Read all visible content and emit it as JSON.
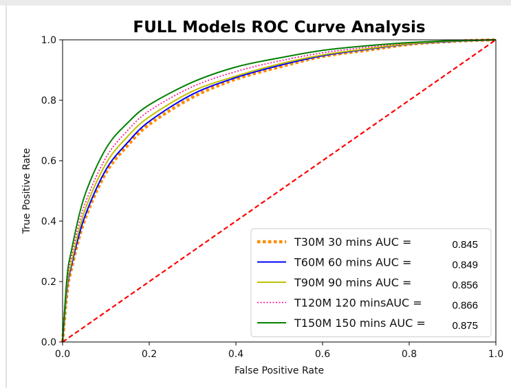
{
  "chart_data": {
    "type": "line",
    "title": "FULL Models ROC Curve Analysis",
    "xlabel": "False Positive Rate",
    "ylabel": "True Positive Rate",
    "xlim": [
      0.0,
      1.0
    ],
    "ylim": [
      0.0,
      1.0
    ],
    "x_ticks": [
      "0.0",
      "0.2",
      "0.4",
      "0.6",
      "0.8",
      "1.0"
    ],
    "y_ticks": [
      "0.0",
      "0.2",
      "0.4",
      "0.6",
      "0.8",
      "1.0"
    ],
    "grid": false,
    "legend_position": "lower-right",
    "series": [
      {
        "name": "T30M 30 mins AUC =",
        "auc": "0.845",
        "color": "#ff8c00",
        "style": "dotted-thick",
        "x": [
          0.0,
          0.01,
          0.02,
          0.05,
          0.1,
          0.15,
          0.2,
          0.3,
          0.4,
          0.5,
          0.6,
          0.7,
          0.8,
          0.9,
          1.0
        ],
        "y": [
          0.0,
          0.16,
          0.24,
          0.4,
          0.56,
          0.65,
          0.72,
          0.81,
          0.87,
          0.91,
          0.945,
          0.965,
          0.985,
          0.995,
          1.0
        ]
      },
      {
        "name": "T60M 60 mins AUC =",
        "auc": "0.849",
        "color": "#0000ff",
        "style": "solid",
        "x": [
          0.0,
          0.01,
          0.02,
          0.05,
          0.1,
          0.15,
          0.2,
          0.3,
          0.4,
          0.5,
          0.6,
          0.7,
          0.8,
          0.9,
          1.0
        ],
        "y": [
          0.0,
          0.17,
          0.25,
          0.41,
          0.57,
          0.66,
          0.73,
          0.82,
          0.875,
          0.915,
          0.947,
          0.968,
          0.986,
          0.995,
          1.0
        ]
      },
      {
        "name": "T90M 90 mins AUC =",
        "auc": "0.856",
        "color": "#bfbf00",
        "style": "solid",
        "x": [
          0.0,
          0.01,
          0.02,
          0.05,
          0.1,
          0.15,
          0.2,
          0.3,
          0.4,
          0.5,
          0.6,
          0.7,
          0.8,
          0.9,
          1.0
        ],
        "y": [
          0.0,
          0.18,
          0.26,
          0.43,
          0.59,
          0.68,
          0.745,
          0.83,
          0.88,
          0.92,
          0.95,
          0.97,
          0.987,
          0.996,
          1.0
        ]
      },
      {
        "name": "T120M 120 minsAUC =",
        "auc": "0.866",
        "color": "#ff1493",
        "style": "dotted",
        "x": [
          0.0,
          0.01,
          0.02,
          0.05,
          0.1,
          0.15,
          0.2,
          0.3,
          0.4,
          0.5,
          0.6,
          0.7,
          0.8,
          0.9,
          1.0
        ],
        "y": [
          0.0,
          0.19,
          0.28,
          0.45,
          0.61,
          0.7,
          0.765,
          0.845,
          0.895,
          0.93,
          0.957,
          0.975,
          0.989,
          0.997,
          1.0
        ]
      },
      {
        "name": "T150M 150 mins AUC =",
        "auc": "0.875",
        "color": "#008000",
        "style": "solid",
        "x": [
          0.0,
          0.01,
          0.02,
          0.05,
          0.1,
          0.15,
          0.2,
          0.3,
          0.4,
          0.5,
          0.6,
          0.7,
          0.8,
          0.9,
          1.0
        ],
        "y": [
          0.0,
          0.21,
          0.3,
          0.48,
          0.64,
          0.725,
          0.785,
          0.86,
          0.91,
          0.94,
          0.965,
          0.98,
          0.991,
          0.997,
          1.0
        ]
      },
      {
        "name": "",
        "color": "#ff0000",
        "style": "dashed",
        "x": [
          0.0,
          1.0
        ],
        "y": [
          0.0,
          1.0
        ]
      }
    ]
  }
}
